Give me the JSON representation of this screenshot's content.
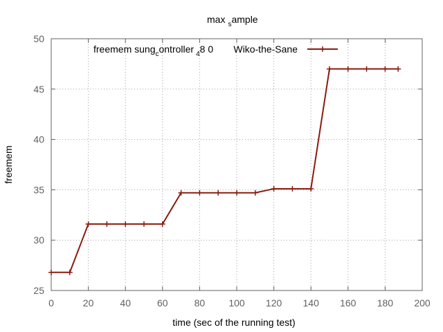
{
  "chart_data": {
    "type": "line",
    "title_parts": [
      "max",
      "s",
      "ample"
    ],
    "xlabel": "time (sec of the running test)",
    "ylabel": "freemem",
    "xlim": [
      0,
      200
    ],
    "ylim": [
      25,
      50
    ],
    "xticks": [
      0,
      20,
      40,
      60,
      80,
      100,
      120,
      140,
      160,
      180,
      200
    ],
    "yticks": [
      25,
      30,
      35,
      40,
      45,
      50
    ],
    "grid": true,
    "legend_position": "top",
    "legend_parts": [
      "freemem  sung",
      "c",
      "ontroller",
      "4",
      "8 0",
      "Wiko-the-Sane"
    ],
    "series": [
      {
        "color": "#8b1a0e",
        "marker": "plus",
        "x": [
          0,
          10,
          20,
          30,
          40,
          50,
          60,
          70,
          80,
          90,
          100,
          110,
          120,
          130,
          140,
          150,
          160,
          170,
          180,
          187
        ],
        "y": [
          26.8,
          26.8,
          31.6,
          31.6,
          31.6,
          31.6,
          31.6,
          34.7,
          34.7,
          34.7,
          34.7,
          34.7,
          35.1,
          35.1,
          35.1,
          47.0,
          47.0,
          47.0,
          47.0,
          47.0
        ]
      }
    ]
  }
}
